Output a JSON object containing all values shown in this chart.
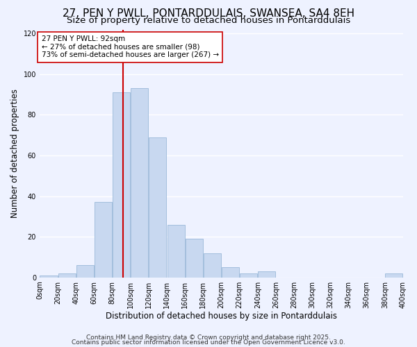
{
  "title": "27, PEN Y PWLL, PONTARDDULAIS, SWANSEA, SA4 8EH",
  "subtitle": "Size of property relative to detached houses in Pontarddulais",
  "xlabel": "Distribution of detached houses by size in Pontarddulais",
  "ylabel": "Number of detached properties",
  "bar_color": "#c8d8f0",
  "bar_edge_color": "#9ab8d8",
  "bin_edges": [
    0,
    20,
    40,
    60,
    80,
    100,
    120,
    140,
    160,
    180,
    200,
    220,
    240,
    260,
    280,
    300,
    320,
    340,
    360,
    380,
    400
  ],
  "counts": [
    1,
    2,
    6,
    37,
    91,
    93,
    69,
    26,
    19,
    12,
    5,
    2,
    3,
    0,
    0,
    0,
    0,
    0,
    0,
    2
  ],
  "vline_x": 92,
  "vline_color": "#cc0000",
  "annotation_title": "27 PEN Y PWLL: 92sqm",
  "annotation_line1": "← 27% of detached houses are smaller (98)",
  "annotation_line2": "73% of semi-detached houses are larger (267) →",
  "annotation_box_color": "#ffffff",
  "annotation_box_edge": "#cc0000",
  "ylim": [
    0,
    122
  ],
  "xlim": [
    0,
    400
  ],
  "yticks": [
    0,
    20,
    40,
    60,
    80,
    100,
    120
  ],
  "xtick_labels": [
    "0sqm",
    "20sqm",
    "40sqm",
    "60sqm",
    "80sqm",
    "100sqm",
    "120sqm",
    "140sqm",
    "160sqm",
    "180sqm",
    "200sqm",
    "220sqm",
    "240sqm",
    "260sqm",
    "280sqm",
    "300sqm",
    "320sqm",
    "340sqm",
    "360sqm",
    "380sqm",
    "400sqm"
  ],
  "footer1": "Contains HM Land Registry data © Crown copyright and database right 2025.",
  "footer2": "Contains public sector information licensed under the Open Government Licence v3.0.",
  "background_color": "#eef2ff",
  "grid_color": "#ffffff",
  "title_fontsize": 11,
  "subtitle_fontsize": 9.5,
  "axis_label_fontsize": 8.5,
  "tick_fontsize": 7,
  "footer_fontsize": 6.5
}
